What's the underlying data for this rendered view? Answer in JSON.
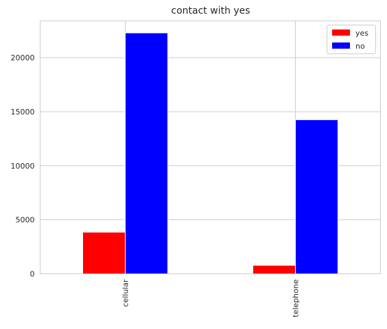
{
  "chart_data": {
    "type": "bar",
    "title": "contact with yes",
    "categories": [
      "cellular",
      "telephone"
    ],
    "series": [
      {
        "name": "yes",
        "values": [
          3853,
          787
        ],
        "color": "#ff0000"
      },
      {
        "name": "no",
        "values": [
          22291,
          14257
        ],
        "color": "#0000ff"
      }
    ],
    "xlabel": "",
    "ylabel": "",
    "ylim": [
      0,
      23400
    ],
    "yticks": [
      0,
      5000,
      10000,
      15000,
      20000
    ],
    "ytick_labels": [
      "0",
      "5000",
      "10000",
      "15000",
      "20000"
    ],
    "grid": true,
    "legend_position": "top-right",
    "xtick_rotation": "vertical"
  }
}
